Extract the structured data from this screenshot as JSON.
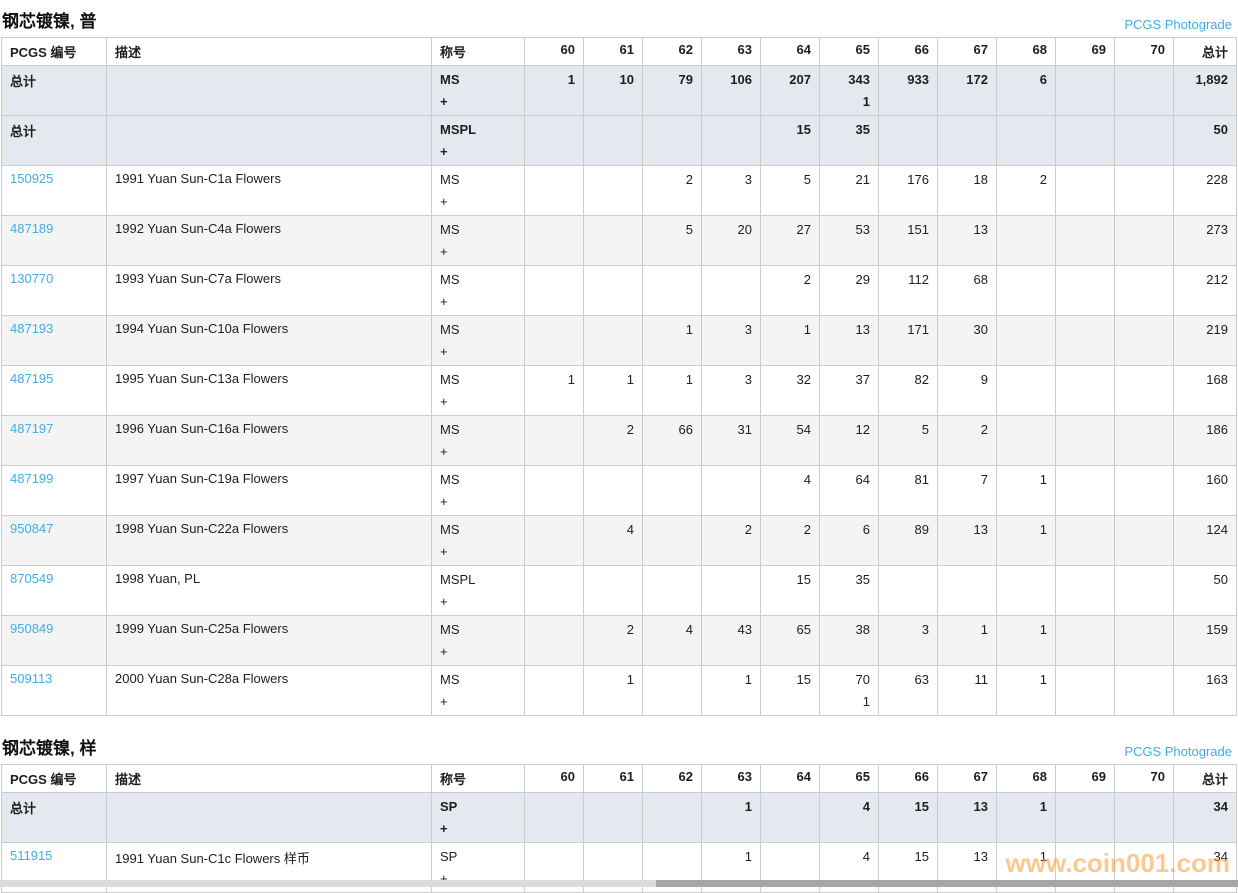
{
  "page": {
    "photograde_label": "PCGS Photograde",
    "watermark": "www.coin001.com",
    "plus_label": "+",
    "link_color": "#41ade4",
    "total_row_bg": "#e3e9ee"
  },
  "columns": [
    "PCGS 编号",
    "描述",
    "称号",
    "60",
    "61",
    "62",
    "63",
    "64",
    "65",
    "66",
    "67",
    "68",
    "69",
    "70",
    "总计"
  ],
  "tables": [
    {
      "title": "钢芯镀镍, 普",
      "rows": [
        {
          "id": "总计",
          "is_total": true,
          "desc": "",
          "designation": "MS",
          "grades": [
            "1",
            "10",
            "79",
            "106",
            "207",
            "343",
            "933",
            "172",
            "6",
            "",
            ""
          ],
          "plus": [
            "",
            "",
            "",
            "",
            "",
            "1",
            "",
            "",
            "",
            "",
            ""
          ],
          "total": "1,892"
        },
        {
          "id": "总计",
          "is_total": true,
          "desc": "",
          "designation": "MSPL",
          "grades": [
            "",
            "",
            "",
            "",
            "15",
            "35",
            "",
            "",
            "",
            "",
            ""
          ],
          "plus": [
            "",
            "",
            "",
            "",
            "",
            "",
            "",
            "",
            "",
            "",
            ""
          ],
          "total": "50"
        },
        {
          "id": "150925",
          "is_total": false,
          "desc": "1991 Yuan Sun-C1a Flowers",
          "designation": "MS",
          "grades": [
            "",
            "",
            "2",
            "3",
            "5",
            "21",
            "176",
            "18",
            "2",
            "",
            ""
          ],
          "plus": [
            "",
            "",
            "",
            "",
            "",
            "",
            "",
            "",
            "",
            "",
            ""
          ],
          "total": "228"
        },
        {
          "id": "487189",
          "is_total": false,
          "desc": "1992 Yuan Sun-C4a Flowers",
          "designation": "MS",
          "grades": [
            "",
            "",
            "5",
            "20",
            "27",
            "53",
            "151",
            "13",
            "",
            "",
            ""
          ],
          "plus": [
            "",
            "",
            "",
            "",
            "",
            "",
            "",
            "",
            "",
            "",
            ""
          ],
          "total": "273"
        },
        {
          "id": "130770",
          "is_total": false,
          "desc": "1993 Yuan Sun-C7a Flowers",
          "designation": "MS",
          "grades": [
            "",
            "",
            "",
            "",
            "2",
            "29",
            "112",
            "68",
            "",
            "",
            ""
          ],
          "plus": [
            "",
            "",
            "",
            "",
            "",
            "",
            "",
            "",
            "",
            "",
            ""
          ],
          "total": "212"
        },
        {
          "id": "487193",
          "is_total": false,
          "desc": "1994 Yuan Sun-C10a Flowers",
          "designation": "MS",
          "grades": [
            "",
            "",
            "1",
            "3",
            "1",
            "13",
            "171",
            "30",
            "",
            "",
            ""
          ],
          "plus": [
            "",
            "",
            "",
            "",
            "",
            "",
            "",
            "",
            "",
            "",
            ""
          ],
          "total": "219"
        },
        {
          "id": "487195",
          "is_total": false,
          "desc": "1995 Yuan Sun-C13a Flowers",
          "designation": "MS",
          "grades": [
            "1",
            "1",
            "1",
            "3",
            "32",
            "37",
            "82",
            "9",
            "",
            "",
            ""
          ],
          "plus": [
            "",
            "",
            "",
            "",
            "",
            "",
            "",
            "",
            "",
            "",
            ""
          ],
          "total": "168"
        },
        {
          "id": "487197",
          "is_total": false,
          "desc": "1996 Yuan Sun-C16a Flowers",
          "designation": "MS",
          "grades": [
            "",
            "2",
            "66",
            "31",
            "54",
            "12",
            "5",
            "2",
            "",
            "",
            ""
          ],
          "plus": [
            "",
            "",
            "",
            "",
            "",
            "",
            "",
            "",
            "",
            "",
            ""
          ],
          "total": "186"
        },
        {
          "id": "487199",
          "is_total": false,
          "desc": "1997 Yuan Sun-C19a Flowers",
          "designation": "MS",
          "grades": [
            "",
            "",
            "",
            "",
            "4",
            "64",
            "81",
            "7",
            "1",
            "",
            ""
          ],
          "plus": [
            "",
            "",
            "",
            "",
            "",
            "",
            "",
            "",
            "",
            "",
            ""
          ],
          "total": "160"
        },
        {
          "id": "950847",
          "is_total": false,
          "desc": "1998 Yuan Sun-C22a Flowers",
          "designation": "MS",
          "grades": [
            "",
            "4",
            "",
            "2",
            "2",
            "6",
            "89",
            "13",
            "1",
            "",
            ""
          ],
          "plus": [
            "",
            "",
            "",
            "",
            "",
            "",
            "",
            "",
            "",
            "",
            ""
          ],
          "total": "124"
        },
        {
          "id": "870549",
          "is_total": false,
          "desc": "1998 Yuan, PL",
          "designation": "MSPL",
          "grades": [
            "",
            "",
            "",
            "",
            "15",
            "35",
            "",
            "",
            "",
            "",
            ""
          ],
          "plus": [
            "",
            "",
            "",
            "",
            "",
            "",
            "",
            "",
            "",
            "",
            ""
          ],
          "total": "50"
        },
        {
          "id": "950849",
          "is_total": false,
          "desc": "1999 Yuan Sun-C25a Flowers",
          "designation": "MS",
          "grades": [
            "",
            "2",
            "4",
            "43",
            "65",
            "38",
            "3",
            "1",
            "1",
            "",
            ""
          ],
          "plus": [
            "",
            "",
            "",
            "",
            "",
            "",
            "",
            "",
            "",
            "",
            ""
          ],
          "total": "159"
        },
        {
          "id": "509113",
          "is_total": false,
          "desc": "2000 Yuan Sun-C28a Flowers",
          "designation": "MS",
          "grades": [
            "",
            "1",
            "",
            "1",
            "15",
            "70",
            "63",
            "11",
            "1",
            "",
            ""
          ],
          "plus": [
            "",
            "",
            "",
            "",
            "",
            "1",
            "",
            "",
            "",
            "",
            ""
          ],
          "total": "163"
        }
      ]
    },
    {
      "title": "钢芯镀镍, 样",
      "rows": [
        {
          "id": "总计",
          "is_total": true,
          "desc": "",
          "designation": "SP",
          "grades": [
            "",
            "",
            "",
            "1",
            "",
            "4",
            "15",
            "13",
            "1",
            "",
            ""
          ],
          "plus": [
            "",
            "",
            "",
            "",
            "",
            "",
            "",
            "",
            "",
            "",
            ""
          ],
          "total": "34"
        },
        {
          "id": "511915",
          "is_total": false,
          "desc": "1991 Yuan Sun-C1c Flowers 样币",
          "designation": "SP",
          "grades": [
            "",
            "",
            "",
            "1",
            "",
            "4",
            "15",
            "13",
            "1",
            "",
            ""
          ],
          "plus": [
            "",
            "",
            "",
            "",
            "",
            "",
            "",
            "",
            "",
            "",
            ""
          ],
          "total": "34"
        }
      ]
    }
  ]
}
